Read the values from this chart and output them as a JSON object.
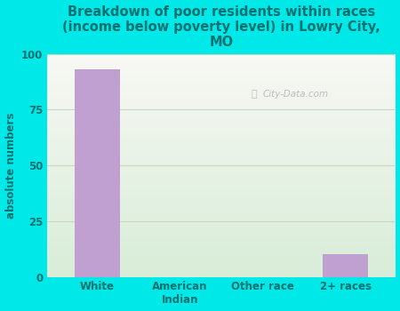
{
  "title": "Breakdown of poor residents within races\n(income below poverty level) in Lowry City,\nMO",
  "categories": [
    "White",
    "American\nIndian",
    "Other race",
    "2+ races"
  ],
  "values": [
    93,
    0,
    0,
    10
  ],
  "bar_color": "#c0a0d0",
  "ylabel": "absolute numbers",
  "ylim": [
    0,
    100
  ],
  "yticks": [
    0,
    25,
    50,
    75,
    100
  ],
  "background_color": "#00e8e8",
  "plot_bg_top": "#f8f8f4",
  "plot_bg_bottom": "#d8edd8",
  "title_color": "#007070",
  "axis_label_color": "#007070",
  "tick_color": "#007070",
  "grid_color": "#c8d8c0",
  "watermark": "City-Data.com",
  "title_fontsize": 10.5,
  "ylabel_fontsize": 8.5,
  "tick_fontsize": 8.5
}
